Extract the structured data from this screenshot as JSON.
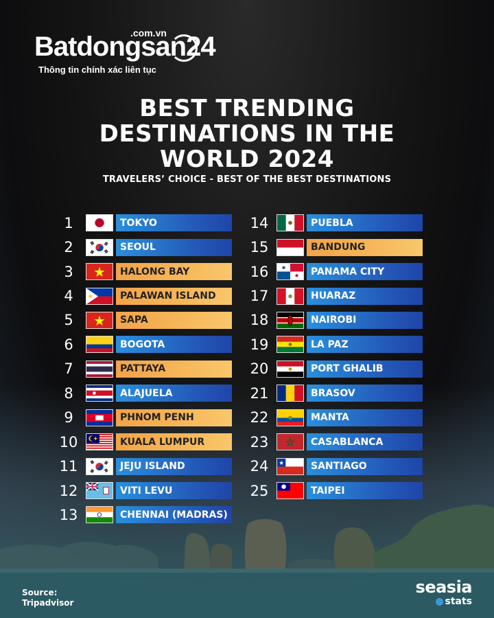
{
  "logo": {
    "main": "Batdongsan24",
    "suffix": ".com.vn",
    "tagline": "Thông tin chính xác liên tục"
  },
  "title": [
    "BEST TRENDING",
    "DESTINATIONS IN THE",
    "WORLD 2024"
  ],
  "subtitle": "TRAVELERS’ CHOICE - BEST OF THE BEST DESTINATIONS",
  "colors": {
    "blue_bar": "#2358b8",
    "orange_bar": "#f6b85a"
  },
  "destinations": [
    {
      "rank": "1",
      "name": "TOKYO",
      "flag": "japan",
      "bar": "blue"
    },
    {
      "rank": "2",
      "name": "SEOUL",
      "flag": "south-korea",
      "bar": "blue"
    },
    {
      "rank": "3",
      "name": "HALONG BAY",
      "flag": "vietnam",
      "bar": "orange"
    },
    {
      "rank": "4",
      "name": "PALAWAN ISLAND",
      "flag": "philippines",
      "bar": "orange"
    },
    {
      "rank": "5",
      "name": "SAPA",
      "flag": "vietnam",
      "bar": "orange"
    },
    {
      "rank": "6",
      "name": "BOGOTA",
      "flag": "colombia",
      "bar": "blue"
    },
    {
      "rank": "7",
      "name": "PATTAYA",
      "flag": "thailand",
      "bar": "orange"
    },
    {
      "rank": "8",
      "name": "ALAJUELA",
      "flag": "costa-rica",
      "bar": "blue"
    },
    {
      "rank": "9",
      "name": "PHNOM PENH",
      "flag": "cambodia",
      "bar": "orange"
    },
    {
      "rank": "10",
      "name": "KUALA LUMPUR",
      "flag": "malaysia",
      "bar": "orange"
    },
    {
      "rank": "11",
      "name": "JEJU ISLAND",
      "flag": "south-korea",
      "bar": "blue"
    },
    {
      "rank": "12",
      "name": "VITI LEVU",
      "flag": "fiji",
      "bar": "blue"
    },
    {
      "rank": "13",
      "name": "CHENNAI (MADRAS)",
      "flag": "india",
      "bar": "blue"
    },
    {
      "rank": "14",
      "name": "PUEBLA",
      "flag": "mexico",
      "bar": "blue"
    },
    {
      "rank": "15",
      "name": "BANDUNG",
      "flag": "indonesia",
      "bar": "orange"
    },
    {
      "rank": "16",
      "name": "PANAMA CITY",
      "flag": "panama",
      "bar": "blue"
    },
    {
      "rank": "17",
      "name": "HUARAZ",
      "flag": "peru",
      "bar": "blue"
    },
    {
      "rank": "18",
      "name": "NAIROBI",
      "flag": "kenya",
      "bar": "blue"
    },
    {
      "rank": "19",
      "name": "LA PAZ",
      "flag": "bolivia",
      "bar": "blue"
    },
    {
      "rank": "20",
      "name": "PORT GHALIB",
      "flag": "egypt",
      "bar": "blue"
    },
    {
      "rank": "21",
      "name": "BRASOV",
      "flag": "romania",
      "bar": "blue"
    },
    {
      "rank": "22",
      "name": "MANTA",
      "flag": "ecuador",
      "bar": "blue"
    },
    {
      "rank": "23",
      "name": "CASABLANCA",
      "flag": "morocco",
      "bar": "blue"
    },
    {
      "rank": "24",
      "name": "SANTIAGO",
      "flag": "chile",
      "bar": "blue"
    },
    {
      "rank": "25",
      "name": "TAIPEI",
      "flag": "taiwan",
      "bar": "blue"
    }
  ],
  "source": {
    "label": "Source:",
    "value": "Tripadvisor"
  },
  "brand": {
    "main": "seasia",
    "sub": "stats"
  }
}
